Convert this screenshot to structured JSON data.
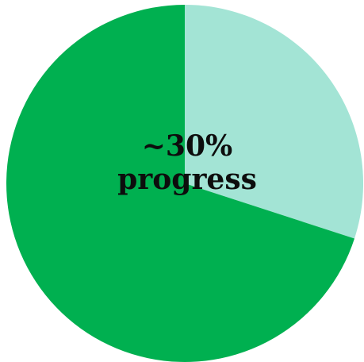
{
  "chart_data": {
    "type": "pie",
    "slices": [
      {
        "value": 30,
        "color": "#a3e4d5"
      },
      {
        "value": 70,
        "color": "#00b050"
      }
    ],
    "start_angle_deg": 0,
    "direction": "clockwise",
    "annotation_lines": [
      "~30%",
      "progress"
    ],
    "legend": "none"
  }
}
